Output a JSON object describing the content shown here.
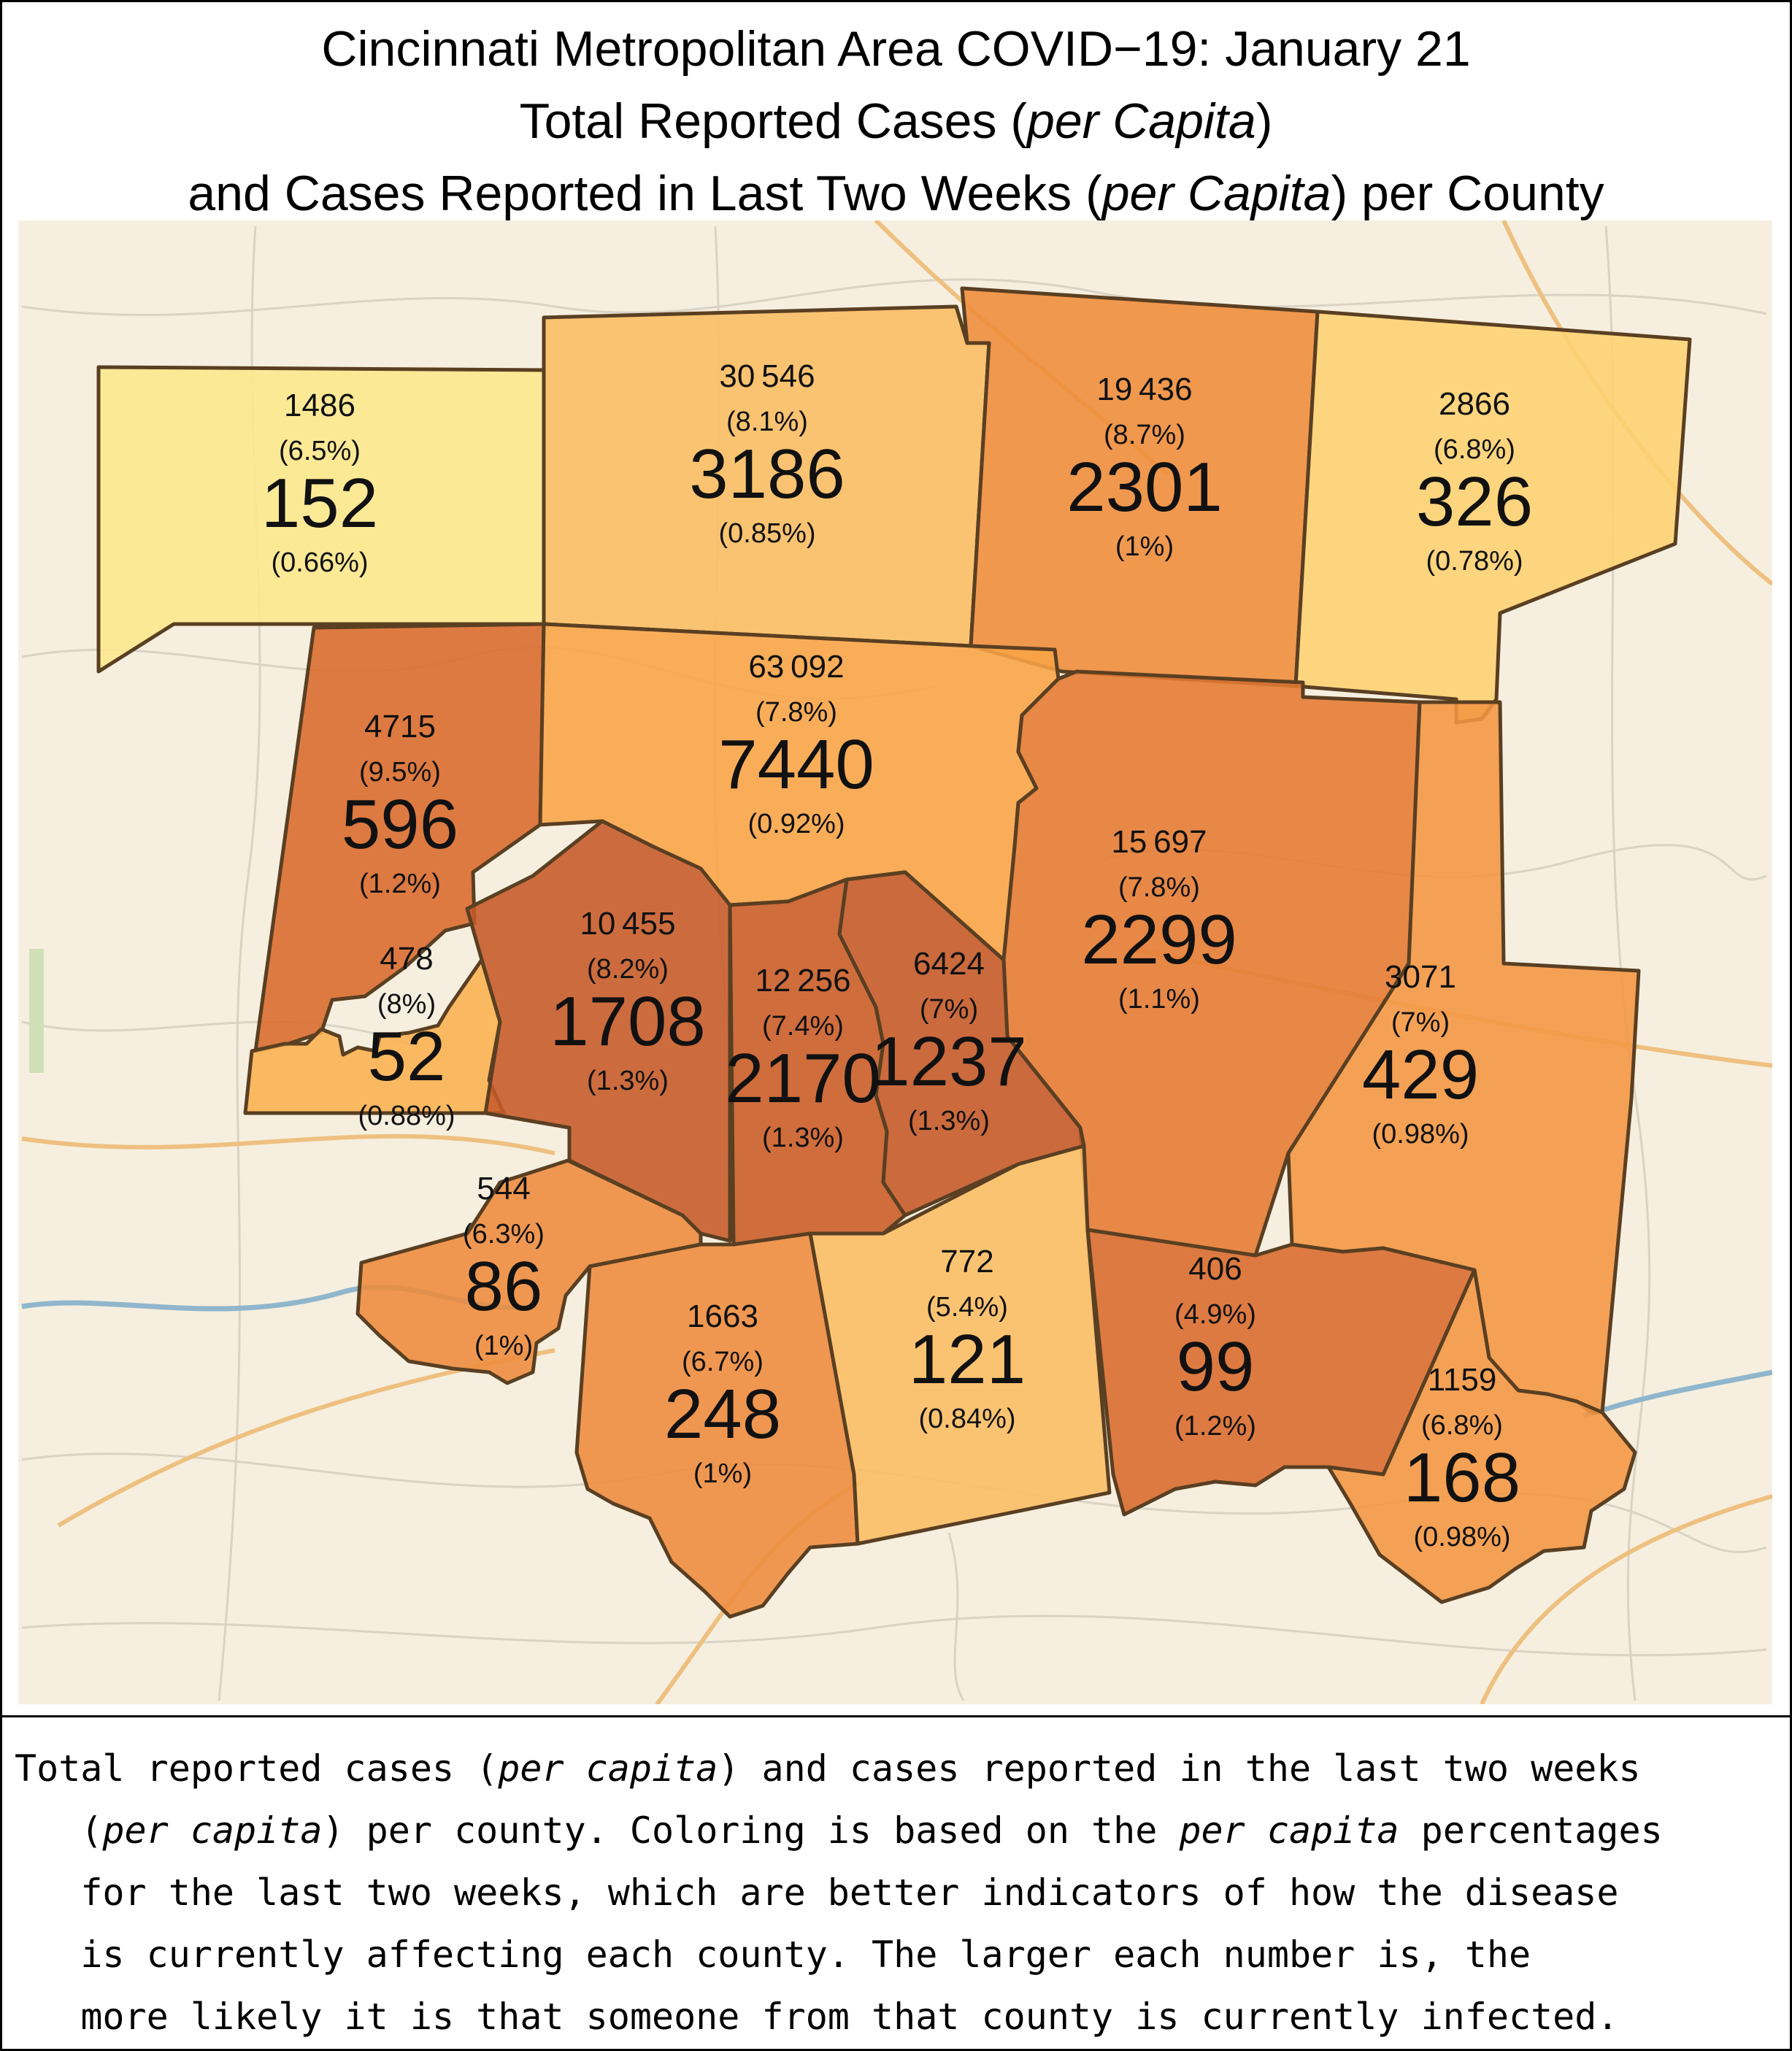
{
  "title": {
    "line1": "Cincinnati Metropolitan Area COVID−19: January 21",
    "line2_pre": "Total Reported Cases (",
    "line2_em": "per Capita",
    "line2_post": ")",
    "line3_pre": "and Cases Reported in Last Two Weeks (",
    "line3_em": "per Capita",
    "line3_post": ") per County"
  },
  "counties": [
    {
      "id": "c1",
      "total": "1486",
      "total_pct": "(6.5%)",
      "recent": "152",
      "recent_pct": "(0.66%)",
      "color": "#fde88c"
    },
    {
      "id": "c2",
      "total": "30 546",
      "total_pct": "(8.1%)",
      "recent": "3186",
      "recent_pct": "(0.85%)",
      "color": "#fbbd62"
    },
    {
      "id": "c3",
      "total": "19 436",
      "total_pct": "(8.7%)",
      "recent": "2301",
      "recent_pct": "(1%)",
      "color": "#ef8c3a"
    },
    {
      "id": "c4",
      "total": "2866",
      "total_pct": "(6.8%)",
      "recent": "326",
      "recent_pct": "(0.78%)",
      "color": "#fdd271"
    },
    {
      "id": "c5",
      "total": "4715",
      "total_pct": "(9.5%)",
      "recent": "596",
      "recent_pct": "(1.2%)",
      "color": "#d96a2b"
    },
    {
      "id": "c6",
      "total": "63 092",
      "total_pct": "(7.8%)",
      "recent": "7440",
      "recent_pct": "(0.92%)",
      "color": "#f9a447"
    },
    {
      "id": "c7",
      "total": "15 697",
      "total_pct": "(7.8%)",
      "recent": "2299",
      "recent_pct": "(1.1%)",
      "color": "#e57a32"
    },
    {
      "id": "c8",
      "total": "478",
      "total_pct": "(8%)",
      "recent": "52",
      "recent_pct": "(0.88%)",
      "color": "#fbb04f"
    },
    {
      "id": "c9",
      "total": "10 455",
      "total_pct": "(8.2%)",
      "recent": "1708",
      "recent_pct": "(1.3%)",
      "color": "#c65a28"
    },
    {
      "id": "c10",
      "total": "12 256",
      "total_pct": "(7.4%)",
      "recent": "2170",
      "recent_pct": "(1.3%)",
      "color": "#c95b27"
    },
    {
      "id": "c11",
      "total": "6424",
      "total_pct": "(7%)",
      "recent": "1237",
      "recent_pct": "(1.3%)",
      "color": "#c45827"
    },
    {
      "id": "c12",
      "total": "3071",
      "total_pct": "(7%)",
      "recent": "429",
      "recent_pct": "(0.98%)",
      "color": "#f49642"
    },
    {
      "id": "c13",
      "total": "544",
      "total_pct": "(6.3%)",
      "recent": "86",
      "recent_pct": "(1%)",
      "color": "#ee8b3c"
    },
    {
      "id": "c14",
      "total": "1663",
      "total_pct": "(6.7%)",
      "recent": "248",
      "recent_pct": "(1%)",
      "color": "#ee8b3c"
    },
    {
      "id": "c15",
      "total": "772",
      "total_pct": "(5.4%)",
      "recent": "121",
      "recent_pct": "(0.84%)",
      "color": "#fbbd63"
    },
    {
      "id": "c16",
      "total": "406",
      "total_pct": "(4.9%)",
      "recent": "99",
      "recent_pct": "(1.2%)",
      "color": "#d96a2b"
    },
    {
      "id": "c17",
      "total": "1159",
      "total_pct": "(6.8%)",
      "recent": "168",
      "recent_pct": "(0.98%)",
      "color": "#f49642"
    }
  ],
  "caption": {
    "t1": "Total reported cases ",
    "t2": "(",
    "t3": "per capita",
    "t4": ") and cases reported in the last two weeks\n   (",
    "t5": "per capita",
    "t6": ") per county. Coloring is based on the ",
    "t7": "per capita",
    "t8": " percentages\n   for the last two weeks, which are better indicators of how the disease\n   is currently affecting each county. The larger each number is, the\n   more likely it is that someone from that county is currently infected."
  }
}
